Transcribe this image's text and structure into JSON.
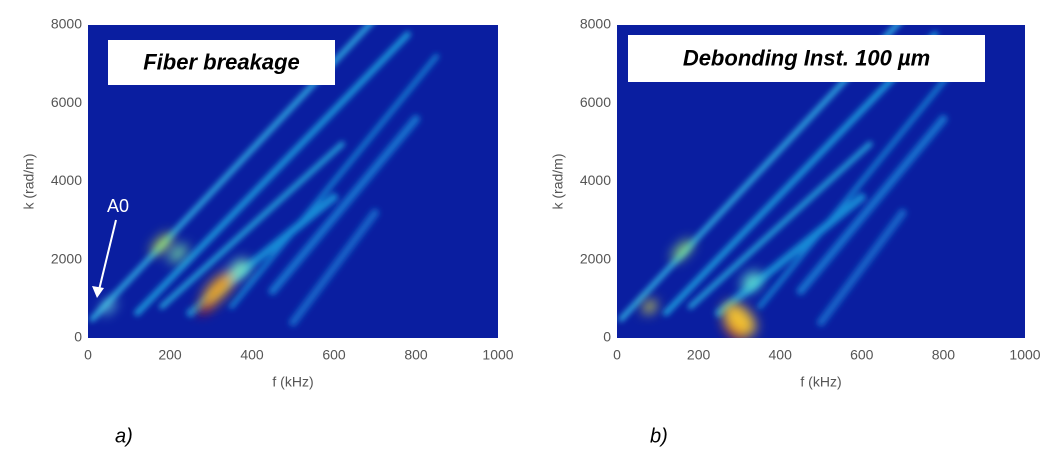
{
  "chart_data": [
    {
      "type": "heatmap",
      "annotation": "Fiber breakage",
      "arrow_label": "A0",
      "panel_label": "a)",
      "xlabel": "f (kHz)",
      "ylabel": "k (rad/m)",
      "xlim": [
        0,
        1000
      ],
      "ylim": [
        0,
        8000
      ],
      "xticks": [
        0,
        200,
        400,
        600,
        800,
        1000
      ],
      "yticks": [
        0,
        2000,
        4000,
        6000,
        8000
      ]
    },
    {
      "type": "heatmap",
      "annotation": "Debonding Inst. 100 µm",
      "panel_label": "b)",
      "xlabel": "f (kHz)",
      "ylabel": "k (rad/m)",
      "xlim": [
        0,
        1000
      ],
      "ylim": [
        0,
        8000
      ],
      "xticks": [
        0,
        200,
        400,
        600,
        800,
        1000
      ],
      "yticks": [
        0,
        2000,
        4000,
        6000,
        8000
      ]
    }
  ]
}
